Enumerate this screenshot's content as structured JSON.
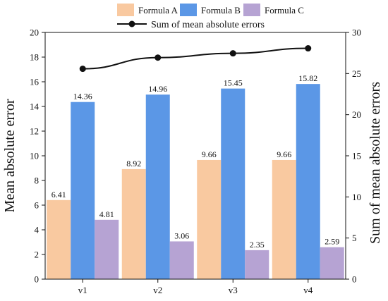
{
  "chart_data": {
    "type": "bar",
    "categories": [
      "v1",
      "v2",
      "v3",
      "v4"
    ],
    "series": [
      {
        "name": "Formula A",
        "values": [
          6.41,
          8.92,
          9.66,
          9.66
        ],
        "color": "#f9c9a0"
      },
      {
        "name": "Formula B",
        "values": [
          14.36,
          14.96,
          15.45,
          15.82
        ],
        "color": "#5b97e6"
      },
      {
        "name": "Formula C",
        "values": [
          4.81,
          3.06,
          2.35,
          2.59
        ],
        "color": "#b6a3d3"
      }
    ],
    "line_series": {
      "name": "Sum of mean absolute errors",
      "values": [
        25.58,
        26.94,
        27.46,
        28.07
      ],
      "color": "#111111",
      "axis": "right"
    },
    "title": "",
    "xlabel": "",
    "ylabel": "Mean absolute error",
    "ylabel_right": "Sum of mean absolute errors",
    "ylim": [
      0,
      20
    ],
    "ylim_right": [
      0,
      30
    ],
    "yticks": [
      "0",
      "2",
      "4",
      "6",
      "8",
      "10",
      "12",
      "14",
      "16",
      "18",
      "20"
    ],
    "yticks_right": [
      "0",
      "5",
      "10",
      "15",
      "20",
      "25",
      "30"
    ],
    "data_labels": {
      "Formula A": [
        "6.41",
        "8.92",
        "9.66",
        "9.66"
      ],
      "Formula B": [
        "14.36",
        "14.96",
        "15.45",
        "15.82"
      ],
      "Formula C": [
        "4.81",
        "3.06",
        "2.35",
        "2.59"
      ]
    },
    "grid": false,
    "legend_placement": "top"
  }
}
